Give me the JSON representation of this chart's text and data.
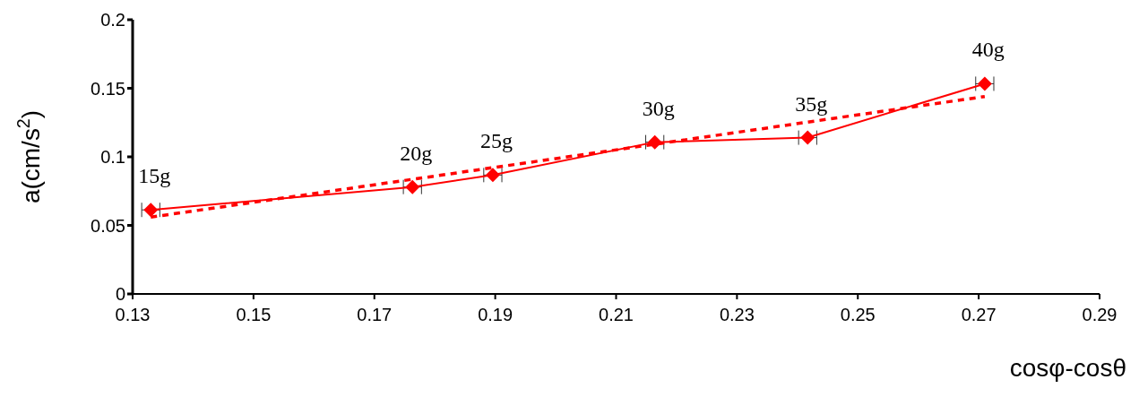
{
  "chart_data": {
    "type": "line",
    "xlabel": "cosφ-cosθ",
    "ylabel": "a(cm/s$^{2}$)",
    "xlim": [
      0.13,
      0.29
    ],
    "xticks": [
      0.13,
      0.15,
      0.17,
      0.19,
      0.21,
      0.23,
      0.25,
      0.27,
      0.29
    ],
    "ylim": [
      0,
      0.2
    ],
    "yticks": [
      0,
      0.05,
      0.1,
      0.15,
      0.2
    ],
    "grid": false,
    "legend": false,
    "series": [
      {
        "color": "#ff0000",
        "marker": "diamond",
        "line_style": "solid",
        "x": [
          0.133,
          0.1763,
          0.1896,
          0.2164,
          0.2417,
          0.271
        ],
        "values": [
          0.0613,
          0.078,
          0.0867,
          0.1107,
          0.114,
          0.1533
        ],
        "xerrors": [
          0.0015,
          0.0015,
          0.0015,
          0.0015,
          0.0015,
          0.0015
        ]
      },
      {
        "color": "#ff0000",
        "marker": "none",
        "line_style": "dashed",
        "x": [
          0.133,
          0.271
        ],
        "values": [
          0.056,
          0.144
        ]
      }
    ],
    "annotations": [
      {
        "text": "15g",
        "x": 0.133,
        "y": 0.0613
      },
      {
        "text": "20g",
        "x": 0.1763,
        "y": 0.078
      },
      {
        "text": "25g",
        "x": 0.1896,
        "y": 0.0867
      },
      {
        "text": "30g",
        "x": 0.2164,
        "y": 0.1107
      },
      {
        "text": "35g",
        "x": 0.2417,
        "y": 0.114
      },
      {
        "text": "40g",
        "x": 0.271,
        "y": 0.1533
      }
    ]
  }
}
